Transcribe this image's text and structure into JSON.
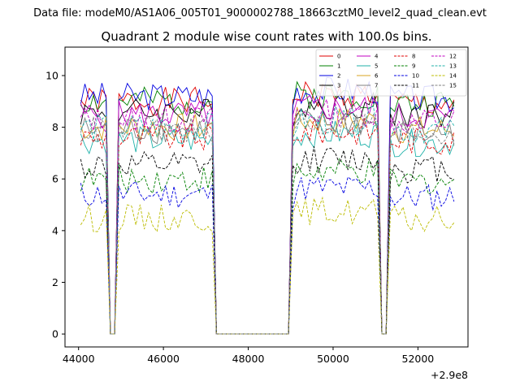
{
  "chart_data": {
    "type": "line",
    "suptitle": "Data file: modeM0/AS1A06_005T01_9000002788_18663cztM0_level2_quad_clean.evt",
    "title": "Quadrant 2 module wise count rates with 100.0s bins.",
    "xlabel": "",
    "ylabel": "",
    "x_offset_label": "+2.9e8",
    "xlim": [
      43680,
      53180
    ],
    "ylim": [
      -0.5,
      11.1
    ],
    "xticks": [
      44000,
      46000,
      48000,
      50000,
      52000
    ],
    "yticks": [
      0,
      2,
      4,
      6,
      8,
      10
    ],
    "legend_position": "top-right",
    "legend_columns": 4,
    "x_segments": [
      {
        "start": 44050,
        "end": 44650,
        "step": 100
      },
      {
        "start": 44750,
        "end": 44850,
        "step": 100
      },
      {
        "start": 44950,
        "end": 47150,
        "step": 100
      },
      {
        "start": 47250,
        "end": 48950,
        "step": 100
      },
      {
        "start": 49050,
        "end": 51050,
        "step": 100
      },
      {
        "start": 51150,
        "end": 51250,
        "step": 100
      },
      {
        "start": 51350,
        "end": 52850,
        "step": 100
      }
    ],
    "series": [
      {
        "name": "0",
        "color": "#e00000",
        "dash": "solid",
        "level": 9.0,
        "seed": 1
      },
      {
        "name": "1",
        "color": "#008000",
        "dash": "solid",
        "level": 9.0,
        "seed": 2
      },
      {
        "name": "2",
        "color": "#0000e0",
        "dash": "solid",
        "level": 9.2,
        "seed": 3
      },
      {
        "name": "3",
        "color": "#000000",
        "dash": "solid",
        "level": 8.6,
        "seed": 4
      },
      {
        "name": "4",
        "color": "#c000c0",
        "dash": "solid",
        "level": 8.5,
        "seed": 5
      },
      {
        "name": "5",
        "color": "#20b2aa",
        "dash": "solid",
        "level": 7.5,
        "seed": 6
      },
      {
        "name": "6",
        "color": "#daa520",
        "dash": "solid",
        "level": 8.0,
        "seed": 7
      },
      {
        "name": "7",
        "color": "#808080",
        "dash": "solid",
        "level": 7.9,
        "seed": 8
      },
      {
        "name": "8",
        "color": "#e00000",
        "dash": "dashed",
        "level": 7.6,
        "seed": 9
      },
      {
        "name": "9",
        "color": "#008000",
        "dash": "dashed",
        "level": 6.0,
        "seed": 10
      },
      {
        "name": "10",
        "color": "#0000e0",
        "dash": "dashed",
        "level": 5.4,
        "seed": 11
      },
      {
        "name": "11",
        "color": "#000000",
        "dash": "dashed",
        "level": 6.5,
        "seed": 12
      },
      {
        "name": "12",
        "color": "#c000c0",
        "dash": "dashed",
        "level": 8.3,
        "seed": 13
      },
      {
        "name": "13",
        "color": "#20b2aa",
        "dash": "dashed",
        "level": 8.0,
        "seed": 14
      },
      {
        "name": "14",
        "color": "#bcbc00",
        "dash": "dashed",
        "level": 4.5,
        "seed": 15
      },
      {
        "name": "15",
        "color": "#808080",
        "dash": "dashed",
        "level": 7.9,
        "seed": 16
      }
    ]
  }
}
